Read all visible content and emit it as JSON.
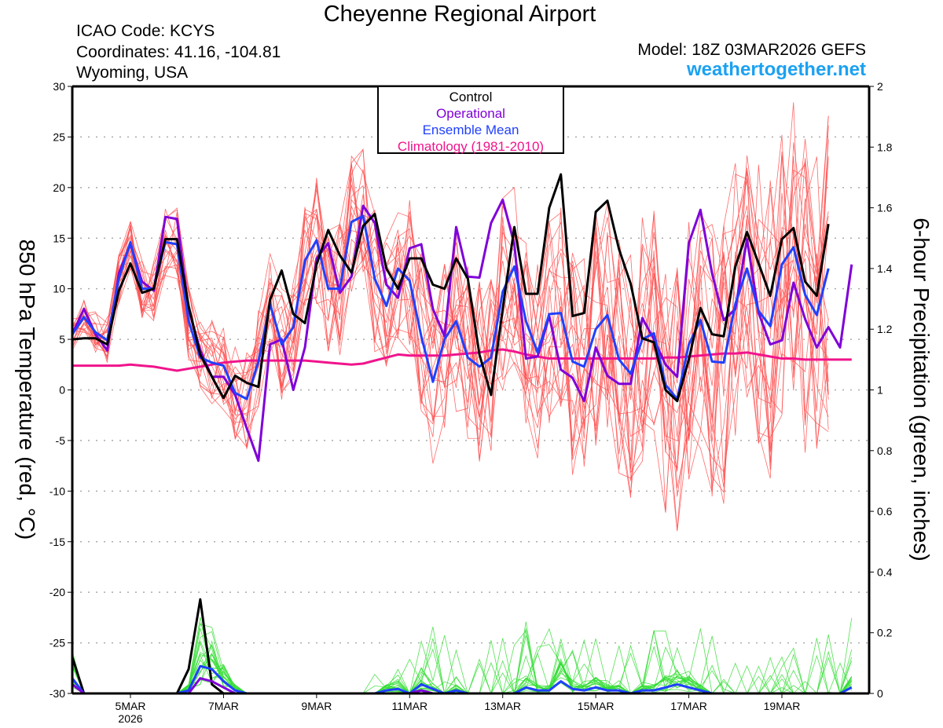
{
  "header": {
    "title": "Cheyenne Regional Airport",
    "icao": "ICAO Code: KCYS",
    "coordinates": "Coordinates: 41.16, -104.81",
    "location": "Wyoming, USA",
    "model": "Model: 18Z 03MAR2026 GEFS",
    "site": "weathertogether.net"
  },
  "colors": {
    "control": "#000000",
    "operational": "#7f00d8",
    "ensemble_mean": "#2040ff",
    "climatology": "#f0148c",
    "members_temp": "#ff5050",
    "members_precip": "#33dd33",
    "site": "#1ba1f2",
    "grid": "#aaaaaa"
  },
  "legend": {
    "items": [
      {
        "label": "Control",
        "color": "#000000"
      },
      {
        "label": "Operational",
        "color": "#7f00d8"
      },
      {
        "label": "Ensemble Mean",
        "color": "#2040ff"
      },
      {
        "label": "Climatology (1981-2010)",
        "color": "#f0148c"
      }
    ]
  },
  "chart_data": {
    "type": "line",
    "title": "Cheyenne Regional Airport",
    "time_start": "03MAR2026 18Z",
    "time_step_hours": 6,
    "xlabel": "",
    "x_ticks": [
      {
        "label": "5MAR",
        "sub": "2026",
        "index": 5
      },
      {
        "label": "7MAR",
        "sub": "",
        "index": 13
      },
      {
        "label": "9MAR",
        "sub": "",
        "index": 21
      },
      {
        "label": "11MAR",
        "sub": "",
        "index": 29
      },
      {
        "label": "13MAR",
        "sub": "",
        "index": 37
      },
      {
        "label": "15MAR",
        "sub": "",
        "index": 45
      },
      {
        "label": "17MAR",
        "sub": "",
        "index": 53
      },
      {
        "label": "19MAR",
        "sub": "",
        "index": 61
      }
    ],
    "x_range": [
      0,
      68.5
    ],
    "ylabel_left": "850 hPa Temperature (red, °C)",
    "ylabel_right": "6-hour Precipitation (green, inches)",
    "ylim_left": [
      -30,
      30
    ],
    "yticks_left": [
      30,
      25,
      20,
      15,
      10,
      5,
      0,
      -5,
      -10,
      -15,
      -20,
      -25,
      -30
    ],
    "ylim_right": [
      0,
      2
    ],
    "yticks_right": [
      2,
      1.8,
      1.6,
      1.4,
      1.2,
      1,
      0.8,
      0.6,
      0.4,
      0.2,
      0
    ],
    "grid": true,
    "temperature_series": [
      {
        "name": "Control",
        "values": [
          5.0,
          5.1,
          5.1,
          4.5,
          9.8,
          12.5,
          9.6,
          10.0,
          14.9,
          14.9,
          8.3,
          3.5,
          1.3,
          -0.8,
          1.4,
          0.7,
          0.3,
          8.9,
          11.8,
          7.5,
          6.6,
          12.4,
          15.8,
          13.3,
          11.6,
          16.2,
          17.4,
          12.0,
          10.0,
          13.0,
          13.0,
          10.4,
          10.0,
          13.0,
          11.0,
          3.5,
          -0.5,
          8.0,
          16.1,
          9.5,
          9.5,
          18.0,
          21.3,
          7.3,
          7.6,
          17.6,
          18.7,
          13.9,
          10.5,
          5.1,
          4.7,
          0.0,
          -1.1,
          3.0,
          8.1,
          5.5,
          5.3,
          12.2,
          15.6,
          12.5,
          9.3,
          14.9,
          16.0,
          10.7,
          9.3,
          16.4
        ]
      },
      {
        "name": "Operational",
        "values": [
          5.5,
          8.0,
          5.5,
          3.9,
          11.5,
          14.4,
          10.7,
          9.8,
          17.1,
          16.9,
          8.0,
          3.9,
          1.3,
          1.3,
          -0.5,
          -3.8,
          -7.0,
          4.5,
          5.0,
          0.0,
          4.2,
          13.0,
          14.5,
          9.6,
          11.2,
          18.2,
          16.5,
          10.4,
          9.1,
          14.0,
          14.4,
          8.0,
          5.3,
          16.1,
          11.2,
          11.1,
          16.5,
          18.8,
          14.4,
          3.1,
          3.3,
          7.3,
          2.0,
          1.2,
          -1.1,
          4.2,
          1.4,
          0.6,
          0.6,
          7.1,
          5.0,
          2.5,
          1.3,
          14.5,
          17.8,
          11.5,
          6.9,
          8.0,
          14.9,
          7.6,
          4.5,
          4.9,
          10.6,
          7.0,
          4.2,
          6.2,
          4.2,
          12.4
        ]
      },
      {
        "name": "Ensemble Mean",
        "values": [
          5.5,
          7.2,
          5.7,
          4.9,
          11.0,
          14.6,
          10.0,
          10.0,
          14.6,
          14.4,
          6.8,
          3.2,
          2.7,
          2.4,
          -0.3,
          -0.9,
          2.8,
          8.5,
          4.5,
          6.2,
          12.8,
          14.8,
          10.0,
          10.0,
          16.6,
          17.2,
          11.0,
          8.3,
          12.0,
          10.8,
          5.3,
          0.8,
          5.0,
          6.8,
          3.2,
          2.3,
          3.2,
          9.7,
          12.2,
          6.8,
          3.7,
          7.5,
          7.6,
          2.8,
          2.3,
          6.0,
          7.4,
          3.0,
          1.6,
          5.0,
          5.6,
          0.5,
          -0.9,
          4.5,
          6.9,
          2.8,
          2.7,
          8.5,
          12.0,
          7.8,
          6.3,
          12.4,
          14.1,
          9.4,
          7.4,
          12.0
        ]
      },
      {
        "name": "Climatology (1981-2010)",
        "values": [
          2.4,
          2.4,
          2.4,
          2.4,
          2.4,
          2.5,
          2.4,
          2.3,
          2.1,
          1.9,
          2.1,
          2.3,
          2.5,
          2.7,
          2.8,
          2.9,
          2.9,
          2.9,
          2.9,
          2.9,
          2.9,
          2.8,
          2.7,
          2.6,
          2.5,
          2.6,
          2.9,
          3.2,
          3.5,
          3.4,
          3.4,
          3.4,
          3.4,
          3.5,
          3.6,
          3.7,
          3.9,
          4.0,
          3.8,
          3.5,
          3.3,
          3.1,
          3.1,
          3.1,
          3.1,
          3.1,
          3.1,
          3.1,
          3.1,
          3.1,
          3.1,
          3.2,
          3.2,
          3.3,
          3.4,
          3.5,
          3.6,
          3.6,
          3.7,
          3.5,
          3.3,
          3.1,
          3.1,
          3.0,
          3.0,
          3.0,
          3.0,
          3.0
        ]
      }
    ],
    "precip_series": [
      {
        "name": "Control",
        "values": [
          0.12,
          0.0,
          0.0,
          0.0,
          0.0,
          0.0,
          0.0,
          0.0,
          0.0,
          0.0,
          0.08,
          0.31,
          0.03,
          0.0,
          0.0,
          0.0,
          0.0,
          0.0,
          0.0,
          0.0,
          0.0,
          0.0,
          0.0,
          0.0,
          0.0,
          0.0,
          0.0,
          0.0,
          0.0,
          0.0,
          0.0,
          0.0,
          0.0,
          0.0,
          0.0,
          0.0,
          0.0,
          0.0,
          0.0,
          0.0,
          0.0,
          0.0,
          0.0,
          0.0,
          0.0,
          0.0,
          0.0,
          0.0,
          0.0,
          0.0,
          0.0,
          0.0,
          0.0,
          0.0,
          0.0,
          0.0,
          0.0,
          0.0,
          0.0,
          0.0,
          0.0,
          0.0,
          0.0,
          0.0,
          0.0,
          0.0,
          0.0,
          0.0
        ]
      },
      {
        "name": "Ensemble Mean",
        "values": [
          0.05,
          0.0,
          0.0,
          0.0,
          0.0,
          0.0,
          0.0,
          0.0,
          0.0,
          0.0,
          0.01,
          0.09,
          0.08,
          0.04,
          0.01,
          0.0,
          0.0,
          0.0,
          0.0,
          0.0,
          0.0,
          0.0,
          0.0,
          0.0,
          0.0,
          0.0,
          0.0,
          0.01,
          0.015,
          0.0,
          0.03,
          0.015,
          0.0,
          0.01,
          0.0,
          0.0,
          0.0,
          0.0,
          0.0,
          0.02,
          0.01,
          0.01,
          0.04,
          0.015,
          0.01,
          0.02,
          0.01,
          0.01,
          0.0,
          0.01,
          0.01,
          0.02,
          0.03,
          0.02,
          0.01,
          0.0,
          0.0,
          0.0,
          0.0,
          0.0,
          0.0,
          0.0,
          0.0,
          0.0,
          0.0,
          0.0,
          0.0,
          0.02
        ]
      },
      {
        "name": "Operational",
        "values": [
          0.03,
          0.0,
          0.0,
          0.0,
          0.0,
          0.0,
          0.0,
          0.0,
          0.0,
          0.0,
          0.0,
          0.05,
          0.04,
          0.02,
          0.0,
          0.0,
          0.0,
          0.0,
          0.0,
          0.0,
          0.0,
          0.0,
          0.0,
          0.0,
          0.0,
          0.0,
          0.0,
          0.0,
          0.0,
          0.0,
          0.01,
          0.0,
          0.0,
          0.0,
          0.0,
          0.0,
          0.0,
          0.0,
          0.0,
          0.0,
          0.0,
          0.0,
          0.0,
          0.0,
          0.0,
          0.0,
          0.0,
          0.0,
          0.0,
          0.0,
          0.0,
          0.0,
          0.0,
          0.0,
          0.0,
          0.0,
          0.0,
          0.0,
          0.0,
          0.0,
          0.0,
          0.0,
          0.0,
          0.0,
          0.0,
          0.0,
          0.0,
          0.0
        ]
      }
    ],
    "ensemble_members_note": "About 20 thin red temperature and green precipitation member traces"
  }
}
